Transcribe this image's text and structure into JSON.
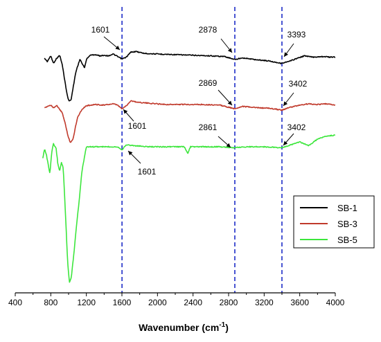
{
  "chart_data": {
    "type": "line",
    "title": "",
    "xlabel": "Wavenumber (cm",
    "xlabel_sup": "-1",
    "xlabel_close": ")",
    "ylabel": "",
    "xlim": [
      400,
      4000
    ],
    "x_ticks": [
      "400",
      "800",
      "1200",
      "1600",
      "2000",
      "2400",
      "2800",
      "3200",
      "3600",
      "4000"
    ],
    "y_axis_shown": false,
    "grid": false,
    "legend_position": "lower-right",
    "reference_lines_x": [
      1601,
      2870,
      3400
    ],
    "reference_line_color": "#1c2bc7",
    "series": [
      {
        "name": "SB-1",
        "color": "#000000",
        "points": [
          [
            730,
            -0.7
          ],
          [
            760,
            -1.2
          ],
          [
            800,
            -0.3
          ],
          [
            830,
            -1.5
          ],
          [
            860,
            -0.8
          ],
          [
            900,
            -0.2
          ],
          [
            930,
            -1.8
          ],
          [
            960,
            -4.5
          ],
          [
            990,
            -7.0
          ],
          [
            1010,
            -7.6
          ],
          [
            1030,
            -7.2
          ],
          [
            1050,
            -5.5
          ],
          [
            1080,
            -3.0
          ],
          [
            1100,
            -2.0
          ],
          [
            1130,
            -0.8
          ],
          [
            1150,
            -1.5
          ],
          [
            1180,
            -2.2
          ],
          [
            1200,
            -0.9
          ],
          [
            1240,
            -0.2
          ],
          [
            1300,
            -0.1
          ],
          [
            1350,
            -0.3
          ],
          [
            1400,
            -0.2
          ],
          [
            1450,
            -0.3
          ],
          [
            1500,
            0.0
          ],
          [
            1550,
            -0.4
          ],
          [
            1601,
            -0.8
          ],
          [
            1650,
            -0.5
          ],
          [
            1700,
            0.3
          ],
          [
            1760,
            0.4
          ],
          [
            1850,
            0.1
          ],
          [
            2000,
            0.0
          ],
          [
            2200,
            -0.1
          ],
          [
            2400,
            -0.2
          ],
          [
            2600,
            -0.3
          ],
          [
            2750,
            -0.4
          ],
          [
            2878,
            -0.9
          ],
          [
            2950,
            -0.6
          ],
          [
            3100,
            -0.9
          ],
          [
            3250,
            -1.1
          ],
          [
            3393,
            -1.5
          ],
          [
            3480,
            -1.2
          ],
          [
            3550,
            -0.8
          ],
          [
            3650,
            -0.3
          ],
          [
            3750,
            -0.5
          ],
          [
            3850,
            -0.4
          ],
          [
            3950,
            -0.5
          ],
          [
            4000,
            -0.5
          ]
        ]
      },
      {
        "name": "SB-3",
        "color": "#c0392b",
        "points": [
          [
            730,
            -0.7
          ],
          [
            760,
            -0.4
          ],
          [
            800,
            -0.2
          ],
          [
            830,
            -0.6
          ],
          [
            870,
            -0.3
          ],
          [
            900,
            -0.9
          ],
          [
            930,
            -1.5
          ],
          [
            960,
            -3.0
          ],
          [
            990,
            -5.0
          ],
          [
            1020,
            -6.2
          ],
          [
            1050,
            -5.7
          ],
          [
            1080,
            -3.5
          ],
          [
            1100,
            -2.2
          ],
          [
            1130,
            -1.4
          ],
          [
            1150,
            -0.9
          ],
          [
            1180,
            -0.5
          ],
          [
            1200,
            -0.3
          ],
          [
            1300,
            -0.1
          ],
          [
            1400,
            -0.2
          ],
          [
            1500,
            0.0
          ],
          [
            1550,
            -0.2
          ],
          [
            1601,
            -0.8
          ],
          [
            1650,
            -0.3
          ],
          [
            1700,
            0.5
          ],
          [
            1760,
            0.3
          ],
          [
            1900,
            0.1
          ],
          [
            2100,
            -0.1
          ],
          [
            2300,
            -0.1
          ],
          [
            2500,
            -0.1
          ],
          [
            2700,
            -0.2
          ],
          [
            2869,
            -0.8
          ],
          [
            2950,
            -0.4
          ],
          [
            3100,
            -0.6
          ],
          [
            3250,
            -0.7
          ],
          [
            3402,
            -1.0
          ],
          [
            3480,
            -0.6
          ],
          [
            3600,
            -0.2
          ],
          [
            3700,
            0.0
          ],
          [
            3800,
            -0.1
          ],
          [
            3900,
            0.0
          ],
          [
            4000,
            -0.2
          ]
        ]
      },
      {
        "name": "SB-5",
        "color": "#3ce63c",
        "points": [
          [
            710,
            -1.2
          ],
          [
            730,
            -0.2
          ],
          [
            750,
            -0.8
          ],
          [
            770,
            -1.8
          ],
          [
            790,
            -2.8
          ],
          [
            810,
            -0.6
          ],
          [
            830,
            0.3
          ],
          [
            860,
            -0.2
          ],
          [
            880,
            -1.8
          ],
          [
            900,
            -2.5
          ],
          [
            920,
            -1.6
          ],
          [
            940,
            -2.2
          ],
          [
            960,
            -6.0
          ],
          [
            990,
            -12.0
          ],
          [
            1010,
            -14.0
          ],
          [
            1030,
            -13.5
          ],
          [
            1060,
            -11.0
          ],
          [
            1090,
            -8.0
          ],
          [
            1120,
            -5.5
          ],
          [
            1150,
            -2.5
          ],
          [
            1180,
            -1.0
          ],
          [
            1200,
            0.0
          ],
          [
            1300,
            0.0
          ],
          [
            1400,
            0.0
          ],
          [
            1500,
            0.0
          ],
          [
            1550,
            0.0
          ],
          [
            1601,
            -0.3
          ],
          [
            1650,
            0.2
          ],
          [
            1750,
            0.1
          ],
          [
            1900,
            0.0
          ],
          [
            2100,
            0.0
          ],
          [
            2300,
            0.0
          ],
          [
            2340,
            -0.7
          ],
          [
            2370,
            0.0
          ],
          [
            2500,
            0.0
          ],
          [
            2700,
            0.0
          ],
          [
            2861,
            -0.1
          ],
          [
            3000,
            0.0
          ],
          [
            3200,
            0.0
          ],
          [
            3402,
            -0.1
          ],
          [
            3500,
            0.2
          ],
          [
            3600,
            0.5
          ],
          [
            3700,
            0.1
          ],
          [
            3800,
            0.8
          ],
          [
            3900,
            1.1
          ],
          [
            4000,
            1.2
          ]
        ]
      }
    ],
    "annotations": [
      {
        "text": "1601",
        "series": "SB-1",
        "x": 1601
      },
      {
        "text": "2878",
        "series": "SB-1",
        "x": 2878
      },
      {
        "text": "3393",
        "series": "SB-1",
        "x": 3393
      },
      {
        "text": "1601",
        "series": "SB-3",
        "x": 1601
      },
      {
        "text": "2869",
        "series": "SB-3",
        "x": 2869
      },
      {
        "text": "3402",
        "series": "SB-3",
        "x": 3402
      },
      {
        "text": "1601",
        "series": "SB-5",
        "x": 1601
      },
      {
        "text": "2861",
        "series": "SB-5",
        "x": 2861
      },
      {
        "text": "3402",
        "series": "SB-5",
        "x": 3402
      }
    ]
  }
}
